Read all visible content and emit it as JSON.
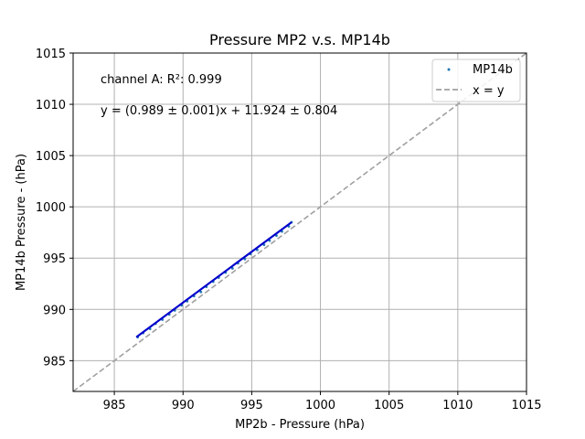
{
  "chart_data": {
    "type": "scatter",
    "title": "Pressure MP2 v.s. MP14b",
    "xlabel": "MP2b - Pressure (hPa)",
    "ylabel": "MP14b Pressure - (hPa)",
    "xlim": [
      982,
      1015
    ],
    "ylim": [
      982,
      1015
    ],
    "xticks": [
      "985",
      "990",
      "995",
      "1000",
      "1005",
      "1010",
      "1015"
    ],
    "yticks": [
      "985",
      "990",
      "995",
      "1000",
      "1005",
      "1010",
      "1015"
    ],
    "grid": true,
    "legend_position": "top-right",
    "annotations": {
      "r2_text": "channel A: R²: 0.999",
      "fit_text": "y = (0.989 ± 0.001)x + 11.924 ± 0.804"
    },
    "series": [
      {
        "name": "MP14b",
        "kind": "scatter",
        "color": "#1f77b4",
        "x": [
          986.7,
          987.1,
          987.6,
          988.0,
          988.5,
          989.0,
          989.4,
          989.9,
          990.3,
          990.8,
          991.3,
          991.7,
          992.2,
          992.6,
          993.1,
          993.6,
          994.0,
          994.5,
          994.9,
          995.4,
          995.9,
          996.3,
          996.8,
          997.2,
          997.7,
          997.9
        ],
        "y": [
          987.3,
          987.7,
          988.1,
          988.6,
          989.0,
          989.5,
          989.9,
          990.4,
          990.8,
          991.3,
          991.7,
          992.2,
          992.7,
          993.1,
          993.6,
          994.0,
          994.5,
          994.9,
          995.4,
          995.8,
          996.3,
          996.7,
          997.2,
          997.6,
          998.1,
          998.5
        ]
      },
      {
        "name": "fit",
        "kind": "line",
        "color": "#0000cc",
        "x": [
          986.6,
          997.9
        ],
        "y": [
          987.3,
          998.5
        ]
      },
      {
        "name": "x = y",
        "kind": "line",
        "color": "#a0a0a0",
        "dash": true,
        "x": [
          982,
          1015
        ],
        "y": [
          982,
          1015
        ]
      }
    ]
  }
}
